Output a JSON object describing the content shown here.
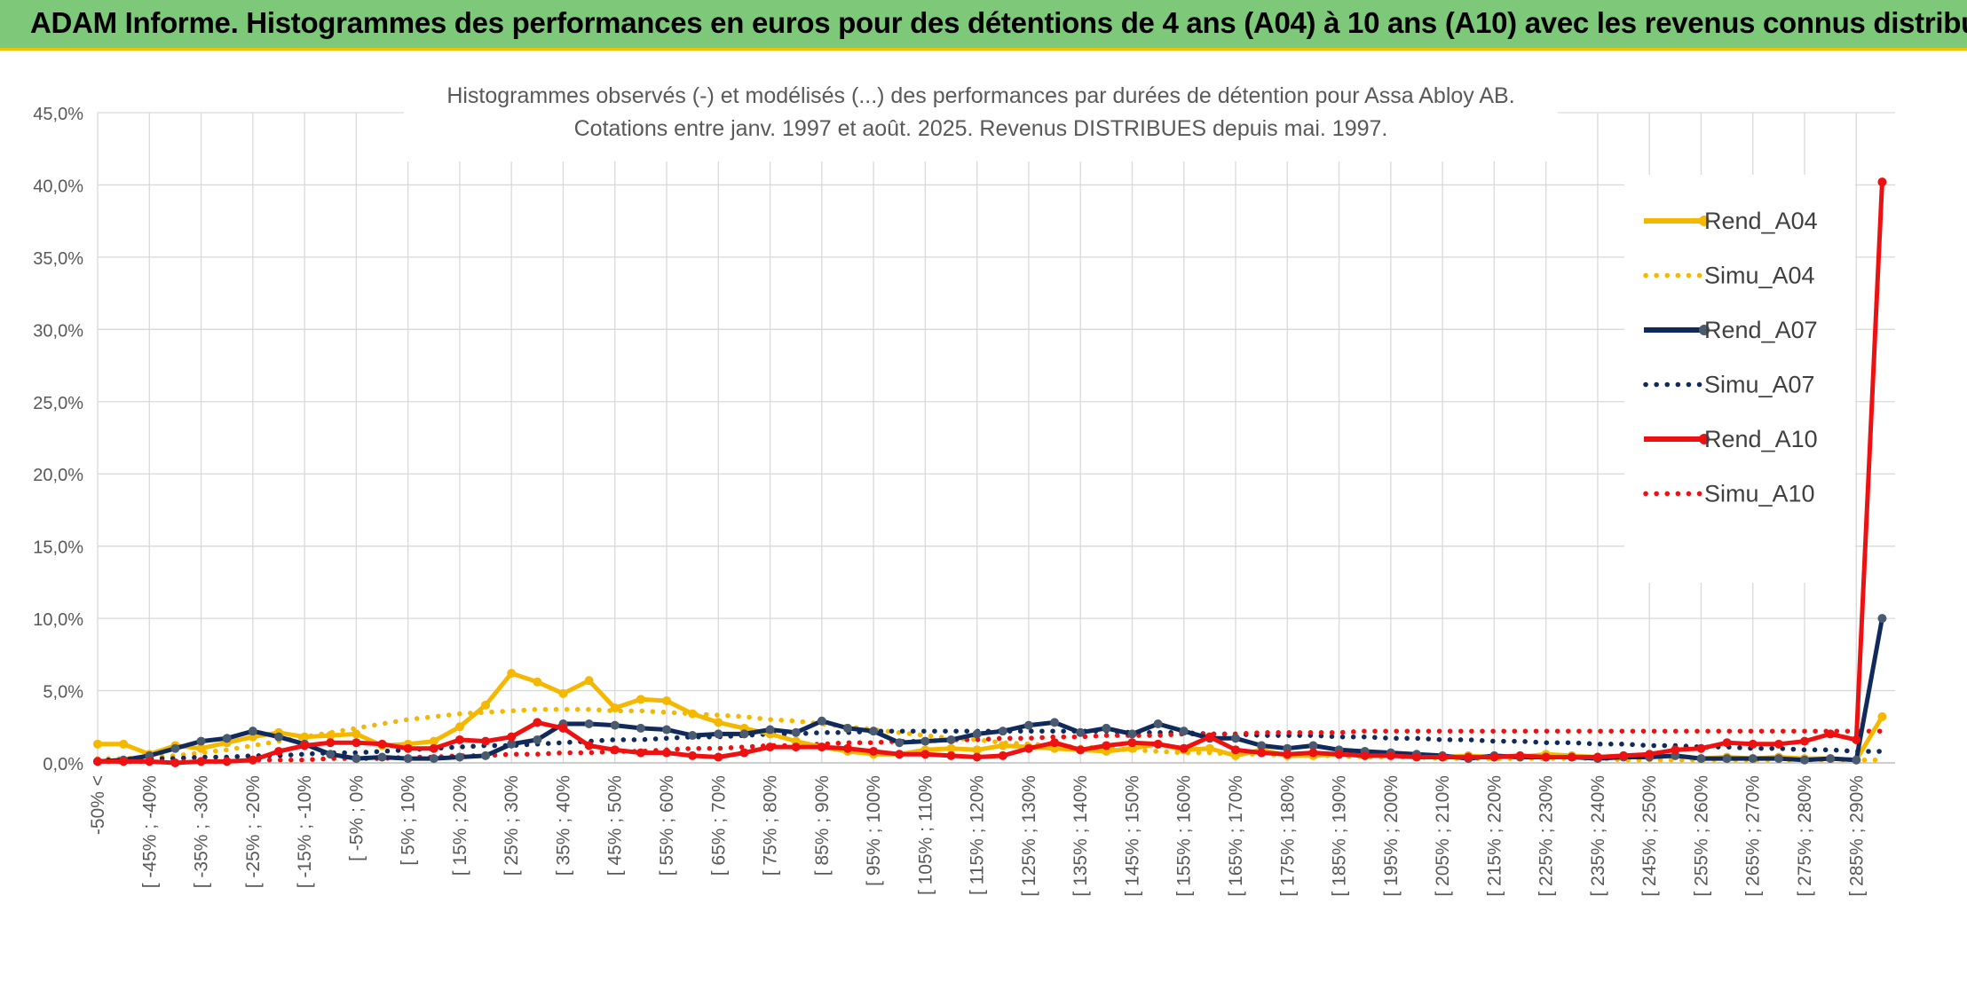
{
  "header": {
    "title": "ADAM Informe. Histogrammes des performances en euros pour des détentions de 4 ans (A04) à 10 ans (A10) avec les revenus connus distribués"
  },
  "chart_data": {
    "type": "line",
    "title_line1": "Histogrammes observés (-) et modélisés (...) des performances par durées de détention pour Assa Abloy AB.",
    "title_line2": "Cotations entre janv. 1997 et août. 2025. Revenus DISTRIBUES depuis mai. 1997.",
    "ylim": [
      0,
      45
    ],
    "yticks": [
      0,
      5,
      10,
      15,
      20,
      25,
      30,
      35,
      40,
      45
    ],
    "ytick_labels": [
      "0,0%",
      "5,0%",
      "10,0%",
      "15,0%",
      "20,0%",
      "25,0%",
      "30,0%",
      "35,0%",
      "40,0%",
      "45,0%"
    ],
    "grid": true,
    "legend_position": "right",
    "xtick_labels": [
      "-50% <",
      "[ -45% ; -40%",
      "[ -35% ; -30%",
      "[ -25% ; -20%",
      "[ -15% ; -10%",
      "[ -5% ; 0%",
      "[ 5% ; 10%",
      "[ 15% ; 20%",
      "[ 25% ; 30%",
      "[ 35% ; 40%",
      "[ 45% ; 50%",
      "[ 55% ; 60%",
      "[ 65% ; 70%",
      "[ 75% ; 80%",
      "[ 85% ; 90%",
      "[ 95% ; 100%",
      "[ 105% ; 110%",
      "[ 115% ; 120%",
      "[ 125% ; 130%",
      "[ 135% ; 140%",
      "[ 145% ; 150%",
      "[ 155% ; 160%",
      "[ 165% ; 170%",
      "[ 175% ; 180%",
      "[ 185% ; 190%",
      "[ 195% ; 200%",
      "[ 205% ; 210%",
      "[ 215% ; 220%",
      "[ 225% ; 230%",
      "[ 235% ; 240%",
      "[ 245% ; 250%",
      "[ 255% ; 260%",
      "[ 265% ; 270%",
      "[ 275% ; 280%",
      "[ 285% ; 290%"
    ],
    "x_count": 70,
    "series": [
      {
        "name": "Rend_A04",
        "style": "solid",
        "color": "#f5b800",
        "markers": true,
        "values": [
          1.3,
          1.3,
          0.6,
          1.2,
          1.0,
          1.4,
          1.8,
          2.1,
          1.8,
          1.9,
          2.0,
          1.2,
          1.3,
          1.5,
          2.5,
          4.0,
          6.2,
          5.6,
          4.8,
          5.7,
          3.8,
          4.4,
          4.3,
          3.4,
          2.8,
          2.4,
          2.0,
          1.5,
          1.1,
          0.8,
          0.6,
          0.6,
          0.9,
          1.0,
          0.9,
          1.2,
          1.1,
          1.0,
          0.9,
          0.8,
          1.0,
          1.3,
          0.9,
          1.0,
          0.5,
          0.9,
          0.5,
          0.5,
          0.6,
          0.5,
          0.6,
          0.5,
          0.4,
          0.5,
          0.4,
          0.4,
          0.6,
          0.5,
          0.4,
          0.5,
          0.4,
          0.5,
          0.3,
          0.4,
          0.3,
          0.4,
          0.3,
          0.3,
          0.2,
          3.2
        ]
      },
      {
        "name": "Simu_A04",
        "style": "dotted",
        "color": "#f5b800",
        "markers": false,
        "values": [
          0.3,
          0.3,
          0.4,
          0.5,
          0.7,
          0.9,
          1.2,
          1.5,
          1.8,
          2.1,
          2.4,
          2.7,
          3.0,
          3.2,
          3.4,
          3.5,
          3.6,
          3.7,
          3.7,
          3.7,
          3.6,
          3.6,
          3.5,
          3.4,
          3.3,
          3.2,
          3.0,
          2.9,
          2.7,
          2.5,
          2.3,
          2.1,
          1.9,
          1.7,
          1.6,
          1.4,
          1.3,
          1.2,
          1.1,
          1.0,
          0.9,
          0.8,
          0.7,
          0.7,
          0.6,
          0.6,
          0.5,
          0.5,
          0.5,
          0.4,
          0.4,
          0.4,
          0.3,
          0.3,
          0.3,
          0.3,
          0.3,
          0.3,
          0.3,
          0.2,
          0.2,
          0.2,
          0.2,
          0.2,
          0.2,
          0.2,
          0.2,
          0.2,
          0.2,
          0.2
        ]
      },
      {
        "name": "Rend_A07",
        "style": "solid",
        "color": "#102a5c",
        "markers": true,
        "values": [
          0.1,
          0.2,
          0.5,
          1.0,
          1.5,
          1.7,
          2.2,
          1.8,
          1.3,
          0.6,
          0.3,
          0.4,
          0.3,
          0.3,
          0.4,
          0.5,
          1.3,
          1.6,
          2.7,
          2.7,
          2.6,
          2.4,
          2.3,
          1.9,
          2.0,
          2.0,
          2.3,
          2.1,
          2.9,
          2.4,
          2.2,
          1.4,
          1.5,
          1.6,
          2.0,
          2.2,
          2.6,
          2.8,
          2.1,
          2.4,
          2.0,
          2.7,
          2.2,
          1.7,
          1.7,
          1.2,
          1.0,
          1.2,
          0.9,
          0.8,
          0.7,
          0.6,
          0.5,
          0.3,
          0.5,
          0.4,
          0.4,
          0.4,
          0.3,
          0.4,
          0.4,
          0.5,
          0.3,
          0.3,
          0.3,
          0.3,
          0.2,
          0.3,
          0.2,
          10.0
        ]
      },
      {
        "name": "Simu_A07",
        "style": "dotted",
        "color": "#102a5c",
        "markers": false,
        "values": [
          0.2,
          0.2,
          0.3,
          0.3,
          0.4,
          0.4,
          0.5,
          0.5,
          0.6,
          0.7,
          0.7,
          0.8,
          0.9,
          1.0,
          1.1,
          1.2,
          1.2,
          1.3,
          1.4,
          1.5,
          1.6,
          1.6,
          1.7,
          1.8,
          1.8,
          1.9,
          2.0,
          2.0,
          2.1,
          2.1,
          2.2,
          2.2,
          2.2,
          2.2,
          2.2,
          2.2,
          2.2,
          2.2,
          2.2,
          2.2,
          2.1,
          2.1,
          2.1,
          2.0,
          2.0,
          1.9,
          1.9,
          1.9,
          1.8,
          1.8,
          1.7,
          1.7,
          1.6,
          1.6,
          1.5,
          1.5,
          1.4,
          1.4,
          1.3,
          1.3,
          1.2,
          1.2,
          1.1,
          1.1,
          1.0,
          1.0,
          0.9,
          0.9,
          0.8,
          0.8
        ]
      },
      {
        "name": "Rend_A10",
        "style": "solid",
        "color": "#ee1111",
        "markers": true,
        "values": [
          0.1,
          0.1,
          0.1,
          0.0,
          0.1,
          0.1,
          0.2,
          0.8,
          1.2,
          1.4,
          1.4,
          1.3,
          1.0,
          1.0,
          1.6,
          1.5,
          1.8,
          2.8,
          2.4,
          1.2,
          0.9,
          0.7,
          0.7,
          0.5,
          0.4,
          0.7,
          1.1,
          1.1,
          1.1,
          1.0,
          0.8,
          0.6,
          0.6,
          0.5,
          0.4,
          0.5,
          1.0,
          1.4,
          0.9,
          1.2,
          1.4,
          1.3,
          1.0,
          1.8,
          0.9,
          0.7,
          0.6,
          0.7,
          0.6,
          0.5,
          0.5,
          0.4,
          0.4,
          0.4,
          0.4,
          0.5,
          0.4,
          0.4,
          0.4,
          0.5,
          0.6,
          0.9,
          1.0,
          1.4,
          1.3,
          1.3,
          1.5,
          2.0,
          1.6,
          40.2
        ]
      },
      {
        "name": "Simu_A10",
        "style": "dotted",
        "color": "#ee1111",
        "markers": false,
        "values": [
          0.1,
          0.1,
          0.1,
          0.1,
          0.1,
          0.1,
          0.2,
          0.2,
          0.2,
          0.3,
          0.3,
          0.3,
          0.4,
          0.4,
          0.5,
          0.5,
          0.6,
          0.6,
          0.7,
          0.7,
          0.8,
          0.8,
          0.9,
          1.0,
          1.0,
          1.1,
          1.2,
          1.2,
          1.3,
          1.4,
          1.4,
          1.5,
          1.5,
          1.6,
          1.6,
          1.7,
          1.7,
          1.8,
          1.8,
          1.9,
          1.9,
          1.9,
          2.0,
          2.0,
          2.0,
          2.1,
          2.1,
          2.1,
          2.1,
          2.2,
          2.2,
          2.2,
          2.2,
          2.2,
          2.2,
          2.2,
          2.2,
          2.2,
          2.2,
          2.2,
          2.2,
          2.2,
          2.2,
          2.2,
          2.2,
          2.2,
          2.2,
          2.2,
          2.2,
          2.2
        ]
      }
    ]
  }
}
